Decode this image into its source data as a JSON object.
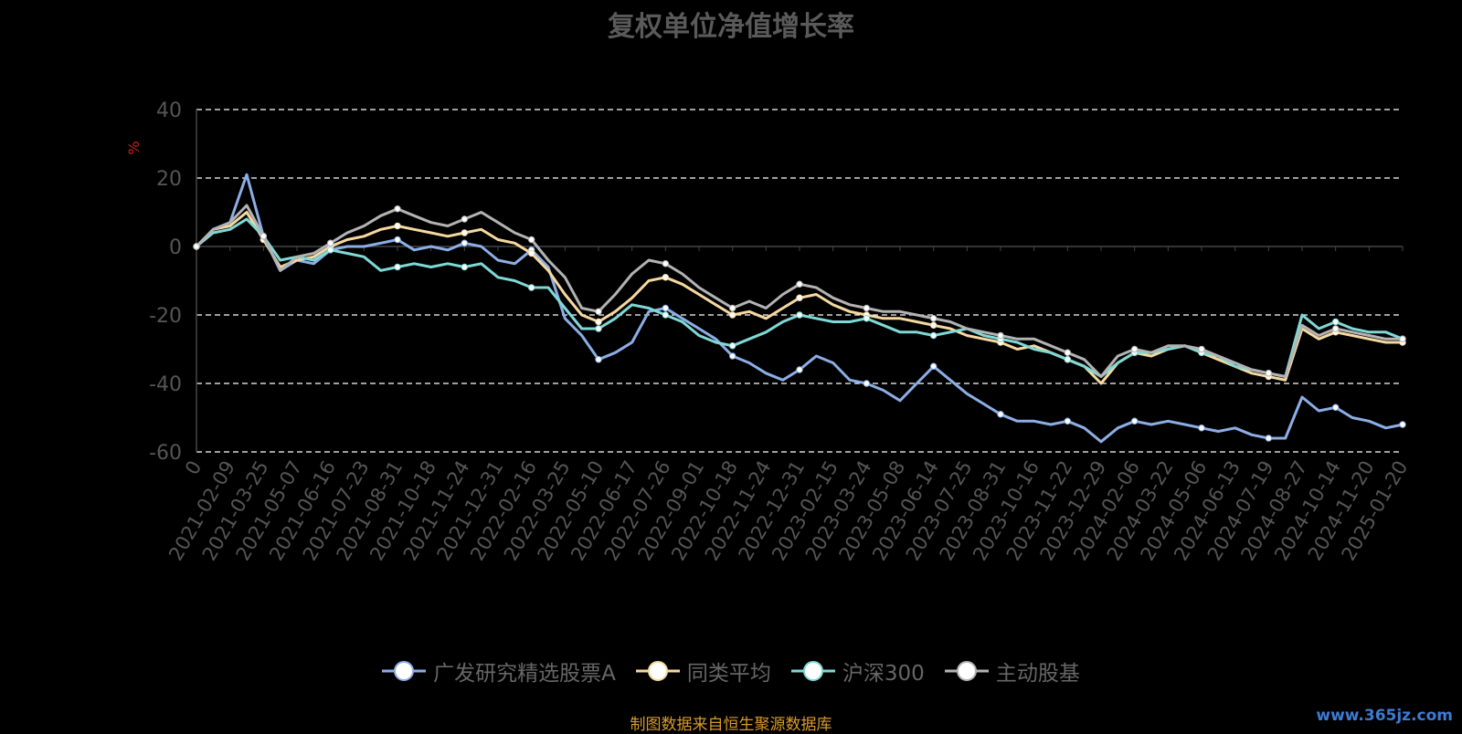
{
  "page": {
    "source_note": "制图数据来自恒生聚源数据库",
    "watermark": "www.365jz.com"
  },
  "chart_data": {
    "type": "line",
    "title": "复权单位净值增长率",
    "ylabel": "%",
    "ylim": [
      -60,
      40
    ],
    "yticks": [
      -60,
      -40,
      -20,
      0,
      20,
      40
    ],
    "grid": true,
    "legend_position": "bottom",
    "x_labels": [
      "0",
      "2021-02-09",
      "2021-03-25",
      "2021-05-07",
      "2021-06-16",
      "2021-07-23",
      "2021-08-31",
      "2021-10-18",
      "2021-11-24",
      "2021-12-31",
      "2022-02-16",
      "2022-03-25",
      "2022-05-10",
      "2022-06-17",
      "2022-07-26",
      "2022-09-01",
      "2022-10-18",
      "2022-11-24",
      "2022-12-31",
      "2023-02-15",
      "2023-03-24",
      "2023-05-08",
      "2023-06-14",
      "2023-07-25",
      "2023-08-31",
      "2023-10-16",
      "2023-11-22",
      "2023-12-29",
      "2024-02-06",
      "2024-03-22",
      "2024-05-06",
      "2024-06-13",
      "2024-07-19",
      "2024-08-27",
      "2024-10-14",
      "2024-11-20",
      "2025-01-20"
    ],
    "series": [
      {
        "name": "广发研究精选股票A",
        "color": "#8caee6",
        "values": [
          0,
          5,
          7,
          21,
          3,
          -7,
          -4,
          -5,
          -1,
          0,
          0,
          1,
          2,
          -1,
          0,
          -1,
          1,
          0,
          -4,
          -5,
          -1,
          -6,
          -21,
          -26,
          -33,
          -31,
          -28,
          -19,
          -18,
          -21,
          -24,
          -27,
          -32,
          -34,
          -37,
          -39,
          -36,
          -32,
          -34,
          -39,
          -40,
          -42,
          -45,
          -40,
          -35,
          -39,
          -43,
          -46,
          -49,
          -51,
          -51,
          -52,
          -51,
          -53,
          -57,
          -53,
          -51,
          -52,
          -51,
          -52,
          -53,
          -54,
          -53,
          -55,
          -56,
          -56,
          -44,
          -48,
          -47,
          -50,
          -51,
          -53,
          -52
        ]
      },
      {
        "name": "同类平均",
        "color": "#f6d9a0",
        "values": [
          0,
          5,
          6,
          10,
          2,
          -6,
          -4,
          -3,
          0,
          2,
          3,
          5,
          6,
          5,
          4,
          3,
          4,
          5,
          2,
          1,
          -2,
          -7,
          -14,
          -20,
          -22,
          -19,
          -15,
          -10,
          -9,
          -11,
          -14,
          -17,
          -20,
          -19,
          -21,
          -18,
          -15,
          -14,
          -17,
          -19,
          -20,
          -21,
          -21,
          -22,
          -23,
          -24,
          -26,
          -27,
          -28,
          -30,
          -29,
          -31,
          -33,
          -35,
          -40,
          -34,
          -31,
          -32,
          -30,
          -29,
          -31,
          -33,
          -35,
          -37,
          -38,
          -39,
          -24,
          -27,
          -25,
          -26,
          -27,
          -28,
          -28
        ]
      },
      {
        "name": "沪深300",
        "color": "#7fd9d6",
        "values": [
          0,
          4,
          5,
          8,
          3,
          -4,
          -3,
          -4,
          -1,
          -2,
          -3,
          -7,
          -6,
          -5,
          -6,
          -5,
          -6,
          -5,
          -9,
          -10,
          -12,
          -12,
          -18,
          -24,
          -24,
          -21,
          -17,
          -18,
          -20,
          -22,
          -26,
          -28,
          -29,
          -27,
          -25,
          -22,
          -20,
          -21,
          -22,
          -22,
          -21,
          -23,
          -25,
          -25,
          -26,
          -25,
          -24,
          -26,
          -27,
          -28,
          -30,
          -31,
          -33,
          -35,
          -38,
          -34,
          -31,
          -31,
          -30,
          -29,
          -31,
          -32,
          -35,
          -36,
          -37,
          -38,
          -20,
          -24,
          -22,
          -24,
          -25,
          -25,
          -27
        ]
      },
      {
        "name": "主动股基",
        "color": "#b3b3b3",
        "values": [
          0,
          5,
          7,
          12,
          3,
          -7,
          -3,
          -2,
          1,
          4,
          6,
          9,
          11,
          9,
          7,
          6,
          8,
          10,
          7,
          4,
          2,
          -4,
          -9,
          -18,
          -19,
          -14,
          -8,
          -4,
          -5,
          -8,
          -12,
          -15,
          -18,
          -16,
          -18,
          -14,
          -11,
          -12,
          -15,
          -17,
          -18,
          -19,
          -19,
          -20,
          -21,
          -22,
          -24,
          -25,
          -26,
          -27,
          -27,
          -29,
          -31,
          -33,
          -38,
          -32,
          -30,
          -31,
          -29,
          -29,
          -30,
          -32,
          -34,
          -36,
          -37,
          -38,
          -23,
          -26,
          -24,
          -25,
          -26,
          -27,
          -27
        ]
      }
    ]
  }
}
